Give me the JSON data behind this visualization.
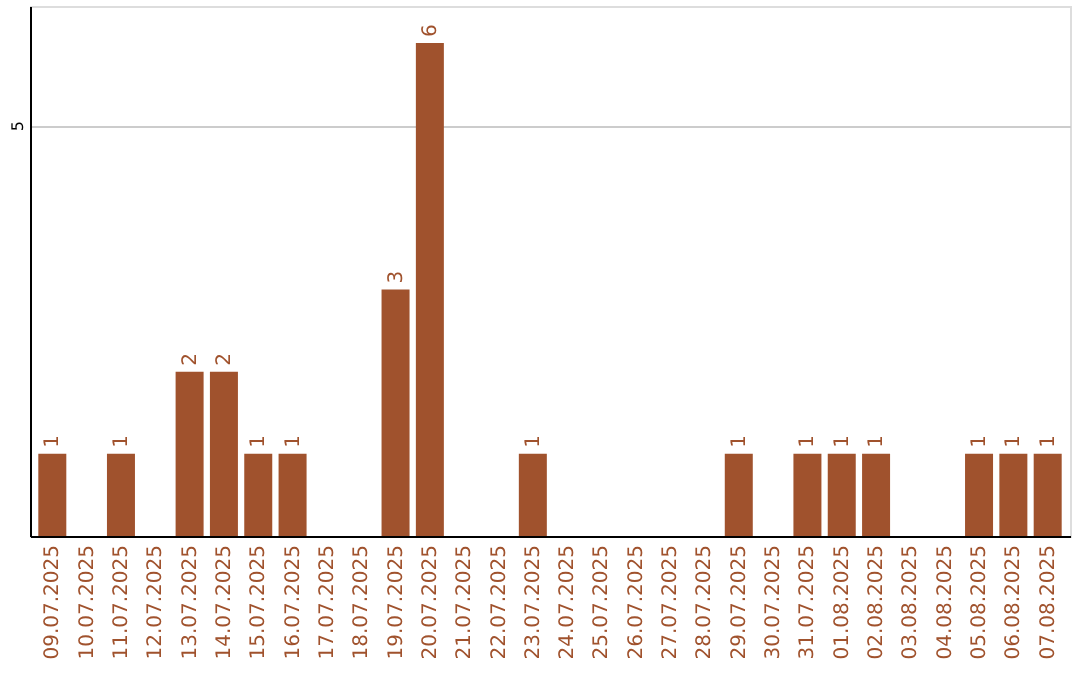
{
  "chart_data": {
    "type": "bar",
    "categories": [
      "09.07.2025",
      "10.07.2025",
      "11.07.2025",
      "12.07.2025",
      "13.07.2025",
      "14.07.2025",
      "15.07.2025",
      "16.07.2025",
      "17.07.2025",
      "18.07.2025",
      "19.07.2025",
      "20.07.2025",
      "21.07.2025",
      "22.07.2025",
      "23.07.2025",
      "24.07.2025",
      "25.07.2025",
      "26.07.2025",
      "27.07.2025",
      "28.07.2025",
      "29.07.2025",
      "30.07.2025",
      "31.07.2025",
      "01.08.2025",
      "02.08.2025",
      "03.08.2025",
      "04.08.2025",
      "05.08.2025",
      "06.08.2025",
      "07.08.2025"
    ],
    "values": [
      1,
      0,
      1,
      0,
      2,
      2,
      1,
      1,
      0,
      0,
      3,
      6,
      0,
      0,
      1,
      0,
      0,
      0,
      0,
      0,
      1,
      0,
      1,
      1,
      1,
      0,
      0,
      1,
      1,
      1
    ],
    "value_labels": [
      "1",
      null,
      "1",
      null,
      "2",
      "2",
      "1",
      "1",
      null,
      null,
      "3",
      "6",
      null,
      null,
      "1",
      null,
      null,
      null,
      null,
      null,
      "1",
      null,
      "1",
      "1",
      "1",
      null,
      null,
      "1",
      "1",
      "1"
    ],
    "color": "#a0522d",
    "ylim": [
      0,
      6.45
    ],
    "yticks": [
      5
    ],
    "grid": "y"
  }
}
